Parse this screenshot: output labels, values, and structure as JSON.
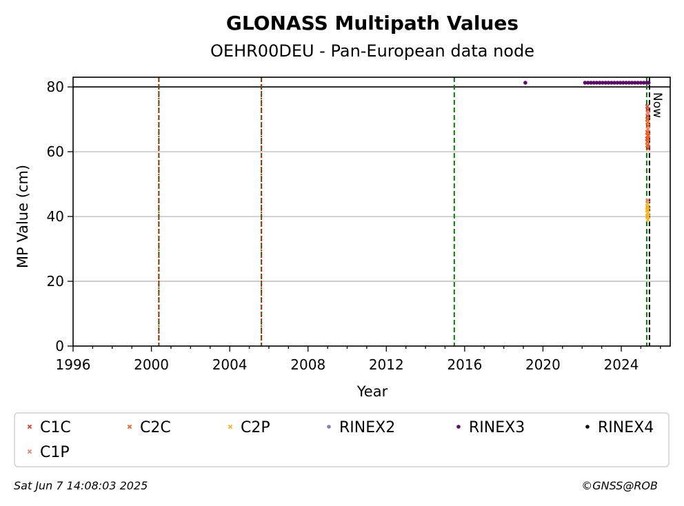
{
  "chart_data": {
    "type": "scatter",
    "title": "GLONASS Multipath Values",
    "subtitle": "OEHR00DEU - Pan-European data node",
    "xlabel": "Year",
    "ylabel": "MP Value (cm)",
    "xlim": [
      1996,
      2026.5
    ],
    "ylim": [
      0,
      83
    ],
    "x_ticks": [
      1996,
      2000,
      2004,
      2008,
      2012,
      2016,
      2020,
      2024
    ],
    "y_ticks": [
      0,
      20,
      40,
      60,
      80
    ],
    "grid": "y",
    "threshold_line": 80,
    "legend_placement": "below",
    "vertical_markers": [
      {
        "x": 2000.38,
        "color": "#008000",
        "style": "dashed"
      },
      {
        "x": 2000.38,
        "color": "#ff0000",
        "style": "dotted"
      },
      {
        "x": 2005.62,
        "color": "#008000",
        "style": "dashed"
      },
      {
        "x": 2005.62,
        "color": "#ff0000",
        "style": "dotted"
      },
      {
        "x": 2015.47,
        "color": "#008000",
        "style": "dashed"
      },
      {
        "x": 2025.3,
        "color": "#008000",
        "style": "dashed"
      },
      {
        "x": 2025.44,
        "color": "#000000",
        "style": "dashed",
        "label": "Now"
      }
    ],
    "series": [
      {
        "name": "C1C",
        "color": "#e63b2e",
        "marker": "x",
        "x": [
          2025.32,
          2025.33,
          2025.34,
          2025.35,
          2025.36,
          2025.37,
          2025.38,
          2025.33,
          2025.35,
          2025.37
        ],
        "y": [
          64,
          70,
          66,
          73,
          62,
          68,
          65,
          74,
          71,
          61
        ]
      },
      {
        "name": "C2C",
        "color": "#f2611d",
        "marker": "x",
        "x": [
          2025.32,
          2025.33,
          2025.34,
          2025.35,
          2025.36,
          2025.37,
          2025.38,
          2025.33,
          2025.35,
          2025.37,
          2025.36
        ],
        "y": [
          66,
          63,
          69,
          65,
          67,
          64,
          68,
          62,
          70,
          66,
          72
        ]
      },
      {
        "name": "C2P",
        "color": "#fbb21a",
        "marker": "x",
        "x": [
          2025.32,
          2025.33,
          2025.34,
          2025.35,
          2025.36,
          2025.37,
          2025.38,
          2025.33,
          2025.35,
          2025.37,
          2025.34
        ],
        "y": [
          42,
          40,
          43,
          41,
          39,
          42,
          40,
          44,
          41,
          43,
          45
        ]
      },
      {
        "name": "RINEX2",
        "color": "#8080c0",
        "marker": "o",
        "x": [],
        "y": []
      },
      {
        "name": "RINEX3",
        "color": "#5c0a6b",
        "marker": "o",
        "x": [
          2019.1,
          2022.15,
          2022.3,
          2022.45,
          2022.6,
          2022.75,
          2022.9,
          2023.05,
          2023.2,
          2023.35,
          2023.5,
          2023.65,
          2023.8,
          2023.95,
          2024.1,
          2024.25,
          2024.4,
          2024.55,
          2024.7,
          2024.85,
          2025.0,
          2025.15,
          2025.3,
          2025.4
        ],
        "y": [
          81.3,
          81.3,
          81.3,
          81.3,
          81.3,
          81.3,
          81.3,
          81.3,
          81.3,
          81.3,
          81.3,
          81.3,
          81.3,
          81.3,
          81.3,
          81.3,
          81.3,
          81.3,
          81.3,
          81.3,
          81.3,
          81.3,
          81.3,
          81.3
        ]
      },
      {
        "name": "RINEX4",
        "color": "#1a0320",
        "marker": "o",
        "x": [],
        "y": []
      },
      {
        "name": "C1P",
        "color": "#f28070",
        "marker": "x",
        "x": [
          2025.34,
          2025.36,
          2025.35
        ],
        "y": [
          72,
          45,
          67
        ]
      }
    ]
  },
  "footer": {
    "timestamp": "Sat Jun  7 14:08:03 2025",
    "copyright": "©GNSS@ROB"
  }
}
